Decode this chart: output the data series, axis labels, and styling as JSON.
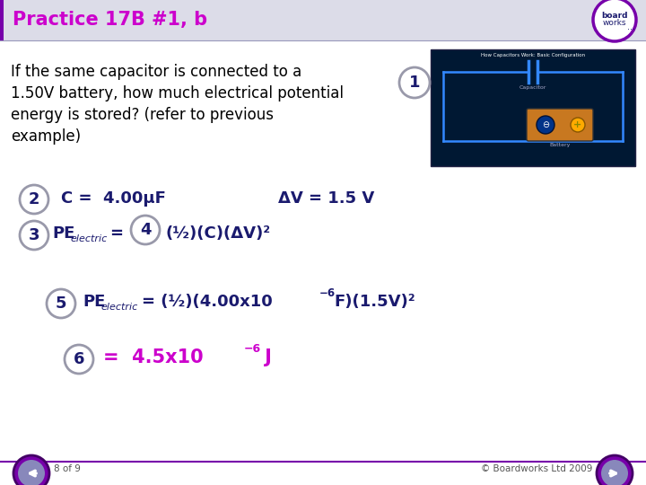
{
  "title": "Practice 17B #1, b",
  "title_color": "#CC00CC",
  "title_bg_color": "#DCDCE8",
  "main_bg": "#FFFFFF",
  "body_text_color": "#000000",
  "formula_color": "#1A1A6E",
  "answer_color": "#CC00CC",
  "circle_edge_color": "#9999AA",
  "header_line_color": "#9999BB",
  "question_line1": "If the same capacitor is connected to a",
  "question_line2": "1.50V battery, how much electrical potential",
  "question_line3": "energy is stored? (refer to previous",
  "question_line4": "example)",
  "footer_left": "8 of 9",
  "footer_right": "© Boardworks Ltd 2009",
  "footer_line_color": "#7700AA",
  "nav_circle_color": "#7700AA",
  "nav_fill": "#7B68AA",
  "logo_border": "#7700AA"
}
